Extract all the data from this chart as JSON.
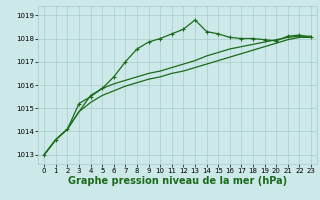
{
  "bg_color": "#cce8e8",
  "grid_color": "#aacccc",
  "line_color": "#1a6b1a",
  "xlabel": "Graphe pression niveau de la mer (hPa)",
  "xlabel_fontsize": 7,
  "yticks": [
    1013,
    1014,
    1015,
    1016,
    1017,
    1018,
    1019
  ],
  "ylim": [
    1012.6,
    1019.4
  ],
  "xlim": [
    -0.5,
    23.5
  ],
  "xticks": [
    0,
    1,
    2,
    3,
    4,
    5,
    6,
    7,
    8,
    9,
    10,
    11,
    12,
    13,
    14,
    15,
    16,
    17,
    18,
    19,
    20,
    21,
    22,
    23
  ],
  "line1": [
    1013.0,
    1013.65,
    1014.1,
    1014.85,
    1015.25,
    1015.55,
    1015.75,
    1015.95,
    1016.1,
    1016.25,
    1016.35,
    1016.5,
    1016.6,
    1016.75,
    1016.9,
    1017.05,
    1017.2,
    1017.35,
    1017.5,
    1017.65,
    1017.8,
    1017.95,
    1018.05,
    1018.05
  ],
  "line2": [
    1013.0,
    1013.65,
    1014.1,
    1014.85,
    1015.55,
    1015.85,
    1016.05,
    1016.2,
    1016.35,
    1016.5,
    1016.6,
    1016.75,
    1016.9,
    1017.05,
    1017.25,
    1017.4,
    1017.55,
    1017.65,
    1017.75,
    1017.85,
    1017.95,
    1018.05,
    1018.1,
    1018.1
  ],
  "line3": [
    1013.0,
    1013.65,
    1014.1,
    1015.2,
    1015.5,
    1015.85,
    1016.35,
    1017.0,
    1017.55,
    1017.85,
    1018.0,
    1018.2,
    1018.4,
    1018.8,
    1018.3,
    1018.2,
    1018.05,
    1018.0,
    1018.0,
    1017.95,
    1017.9,
    1018.1,
    1018.15,
    1018.05
  ]
}
